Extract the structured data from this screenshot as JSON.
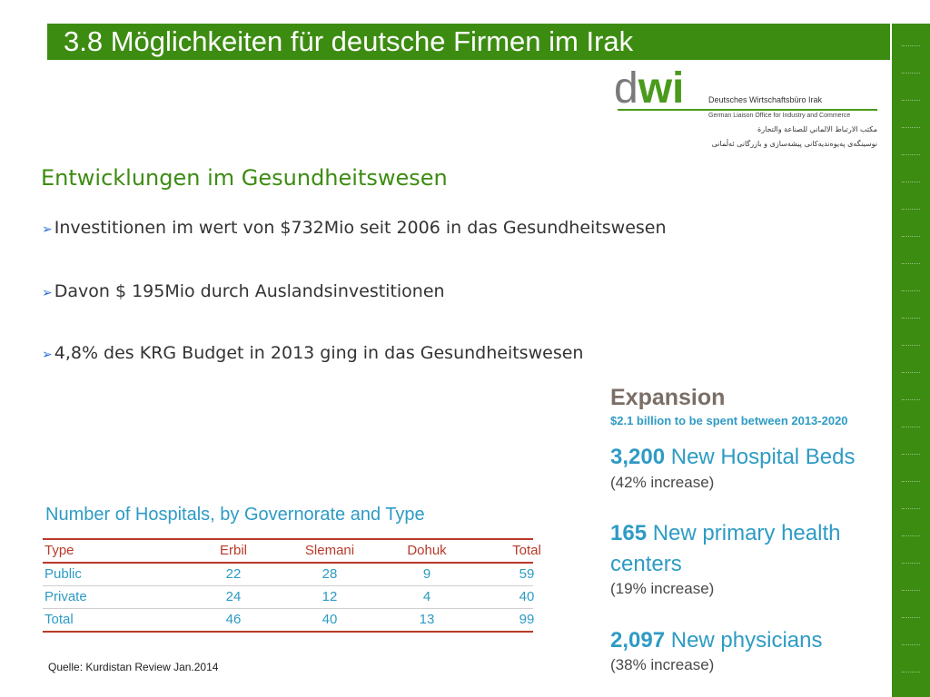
{
  "slide": {
    "title": "3.8 Möglichkeiten für deutsche Firmen im Irak",
    "accent_color": "#3d8c12"
  },
  "logo": {
    "mark_d": "d",
    "mark_wi": "wi",
    "line1": "Deutsches Wirtschaftsbüro Irak",
    "line2": "German Liaison Office for Industry and Commerce",
    "line3": "مكتب الارتباط الالماني للصناعة والتجارة",
    "line4": "نوسینگەی پەیوەندیەکانی پیشەسازی و بازرگانی ئەڵمانی"
  },
  "main": {
    "heading": "Entwicklungen im Gesundheitswesen",
    "bullet_icon": "arrow-bullet-icon",
    "bullets": [
      "Investitionen im wert von $732Mio seit 2006 in das Gesundheitswesen",
      "Davon $ 195Mio durch Auslandsinvestitionen",
      "4,8% des KRG Budget in 2013 ging in das Gesundheitswesen"
    ]
  },
  "hospitals_table": {
    "title": "Number of Hospitals, by Governorate and Type",
    "columns": [
      "Type",
      "Erbil",
      "Slemani",
      "Dohuk",
      "Total"
    ],
    "rows": [
      [
        "Public",
        "22",
        "28",
        "9",
        "59"
      ],
      [
        "Private",
        "24",
        "12",
        "4",
        "40"
      ],
      [
        "Total",
        "46",
        "40",
        "13",
        "99"
      ]
    ]
  },
  "expansion": {
    "title": "Expansion",
    "subtitle": "$2.1 billion to be spent between 2013-2020",
    "stats": [
      {
        "number": "3,200",
        "label": "New Hospital Beds",
        "label2": "",
        "note": "(42% increase)"
      },
      {
        "number": "165",
        "label": "New primary health",
        "label2": "centers",
        "note": "(19% increase)"
      },
      {
        "number": "2,097",
        "label": "New physicians",
        "label2": "",
        "note": "(38% increase)"
      }
    ]
  },
  "source": "Quelle: Kurdistan Review Jan.2014"
}
